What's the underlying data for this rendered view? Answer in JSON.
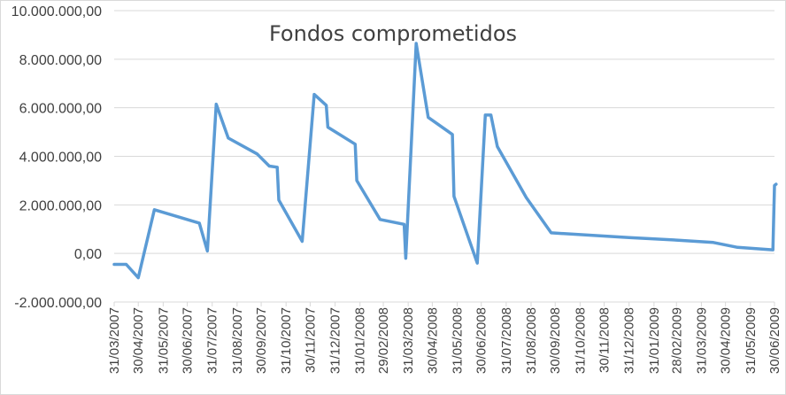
{
  "chart_data": {
    "type": "line",
    "title": "Fondos comprometidos",
    "xlabel": "",
    "ylabel": "",
    "ylim": [
      -2000000,
      10000000
    ],
    "yticks": [
      -2000000,
      0,
      2000000,
      4000000,
      6000000,
      8000000,
      10000000
    ],
    "ytick_labels": [
      "-2.000.000,00",
      "0,00",
      "2.000.000,00",
      "4.000.000,00",
      "6.000.000,00",
      "8.000.000,00",
      "10.000.000,00"
    ],
    "xlim": [
      "2007-03-31",
      "2009-06-30"
    ],
    "xtick_labels": [
      "31/03/2007",
      "30/04/2007",
      "31/05/2007",
      "30/06/2007",
      "31/07/2007",
      "31/08/2007",
      "30/09/2007",
      "31/10/2007",
      "30/11/2007",
      "31/12/2007",
      "31/01/2008",
      "29/02/2008",
      "31/03/2008",
      "30/04/2008",
      "31/05/2008",
      "30/06/2008",
      "31/07/2008",
      "31/08/2008",
      "30/09/2008",
      "31/10/2008",
      "30/11/2008",
      "31/12/2008",
      "31/01/2009",
      "28/02/2009",
      "31/03/2009",
      "30/04/2009",
      "31/05/2009",
      "30/06/2009"
    ],
    "grid": true,
    "series": [
      {
        "color": "#5b9bd5",
        "points": [
          [
            "2007-03-31",
            -450000
          ],
          [
            "2007-04-15",
            -450000
          ],
          [
            "2007-04-30",
            -1000000
          ],
          [
            "2007-05-20",
            1800000
          ],
          [
            "2007-07-15",
            1250000
          ],
          [
            "2007-07-25",
            100000
          ],
          [
            "2007-08-05",
            6150000
          ],
          [
            "2007-08-20",
            4750000
          ],
          [
            "2007-09-25",
            4100000
          ],
          [
            "2007-10-10",
            3600000
          ],
          [
            "2007-10-20",
            3550000
          ],
          [
            "2007-10-22",
            2200000
          ],
          [
            "2007-11-20",
            500000
          ],
          [
            "2007-12-05",
            6550000
          ],
          [
            "2007-12-20",
            6100000
          ],
          [
            "2007-12-22",
            5200000
          ],
          [
            "2008-01-25",
            4500000
          ],
          [
            "2008-01-27",
            3000000
          ],
          [
            "2008-02-25",
            1400000
          ],
          [
            "2008-03-26",
            1200000
          ],
          [
            "2008-03-28",
            -200000
          ],
          [
            "2008-04-10",
            8650000
          ],
          [
            "2008-04-25",
            5600000
          ],
          [
            "2008-05-25",
            4900000
          ],
          [
            "2008-05-27",
            2350000
          ],
          [
            "2008-06-25",
            -400000
          ],
          [
            "2008-07-05",
            5700000
          ],
          [
            "2008-07-12",
            5700000
          ],
          [
            "2008-07-20",
            4400000
          ],
          [
            "2008-08-25",
            2300000
          ],
          [
            "2008-09-25",
            850000
          ],
          [
            "2008-12-31",
            650000
          ],
          [
            "2009-02-28",
            550000
          ],
          [
            "2009-04-15",
            450000
          ],
          [
            "2009-05-15",
            250000
          ],
          [
            "2009-06-28",
            150000
          ],
          [
            "2009-06-30",
            2800000
          ],
          [
            "2009-07-02",
            2850000
          ]
        ]
      }
    ]
  }
}
